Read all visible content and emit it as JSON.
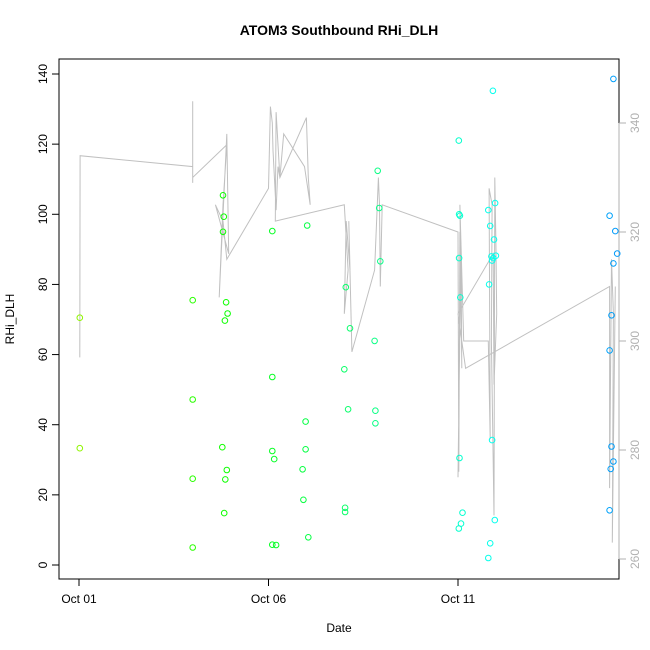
{
  "chart_data": {
    "type": "scatter",
    "title": "ATOM3 Southbound RHi_DLH",
    "xlabel": "Date",
    "ylabel": "RHi_DLH",
    "x_unit": "day of October 2016",
    "xlim": [
      1,
      15.8
    ],
    "ylim": [
      0,
      140
    ],
    "x_ticks": [
      {
        "x": 1,
        "label": "Oct 01"
      },
      {
        "x": 6,
        "label": "Oct 06"
      },
      {
        "x": 11,
        "label": "Oct 11"
      }
    ],
    "y_ticks": [
      0,
      20,
      40,
      60,
      80,
      100,
      120,
      140
    ],
    "y2_ticks": [
      260,
      280,
      300,
      320,
      340
    ],
    "y2lim": [
      259,
      350
    ],
    "point_style": "open circles, color graded green to blue by date",
    "line_color": "#c0c0c0",
    "series": [
      {
        "points": [
          [
            1.02,
            70.5
          ],
          [
            1.02,
            33.3
          ],
          [
            4.0,
            75.5
          ],
          [
            4.0,
            47.2
          ],
          [
            4.0,
            24.6
          ],
          [
            4.0,
            5.0
          ],
          [
            4.8,
            105.4
          ],
          [
            4.82,
            99.3
          ],
          [
            4.8,
            95.0
          ],
          [
            4.78,
            33.6
          ],
          [
            4.86,
            24.4
          ],
          [
            4.9,
            27.1
          ],
          [
            4.83,
            14.8
          ],
          [
            4.88,
            74.9
          ],
          [
            4.92,
            71.7
          ],
          [
            4.85,
            69.7
          ],
          [
            6.1,
            95.2
          ],
          [
            6.1,
            53.6
          ],
          [
            6.1,
            32.5
          ],
          [
            6.15,
            30.2
          ],
          [
            6.1,
            5.8
          ],
          [
            6.2,
            5.7
          ],
          [
            6.9,
            27.3
          ],
          [
            6.92,
            18.6
          ],
          [
            6.98,
            33.0
          ],
          [
            6.98,
            40.9
          ],
          [
            7.02,
            96.8
          ],
          [
            7.05,
            7.9
          ],
          [
            8.0,
            55.8
          ],
          [
            8.02,
            16.3
          ],
          [
            8.02,
            15.1
          ],
          [
            8.04,
            79.2
          ],
          [
            8.1,
            44.4
          ],
          [
            8.15,
            67.5
          ],
          [
            8.8,
            63.9
          ],
          [
            8.82,
            44.0
          ],
          [
            8.82,
            40.4
          ],
          [
            8.88,
            112.4
          ],
          [
            8.92,
            101.8
          ],
          [
            8.95,
            86.6
          ],
          [
            11.02,
            121.0
          ],
          [
            11.03,
            100.0
          ],
          [
            11.05,
            99.6
          ],
          [
            11.03,
            87.5
          ],
          [
            11.06,
            76.3
          ],
          [
            11.04,
            30.5
          ],
          [
            11.12,
            14.9
          ],
          [
            11.08,
            11.8
          ],
          [
            11.02,
            10.4
          ],
          [
            11.8,
            101.2
          ],
          [
            11.85,
            96.7
          ],
          [
            11.88,
            88.0
          ],
          [
            11.95,
            92.8
          ],
          [
            11.93,
            87.5
          ],
          [
            11.9,
            86.8
          ],
          [
            12.0,
            88.2
          ],
          [
            11.82,
            80.0
          ],
          [
            11.9,
            35.6
          ],
          [
            11.92,
            135.2
          ],
          [
            11.98,
            103.2
          ],
          [
            11.97,
            12.8
          ],
          [
            11.8,
            2.0
          ],
          [
            11.85,
            6.2
          ],
          [
            15.0,
            99.6
          ],
          [
            15.05,
            71.2
          ],
          [
            15.0,
            61.2
          ],
          [
            15.05,
            33.8
          ],
          [
            15.03,
            27.4
          ],
          [
            15.1,
            29.5
          ],
          [
            15.1,
            138.6
          ],
          [
            15.15,
            95.2
          ],
          [
            15.2,
            88.8
          ],
          [
            15.1,
            86.0
          ],
          [
            15.0,
            15.6
          ]
        ]
      }
    ]
  }
}
